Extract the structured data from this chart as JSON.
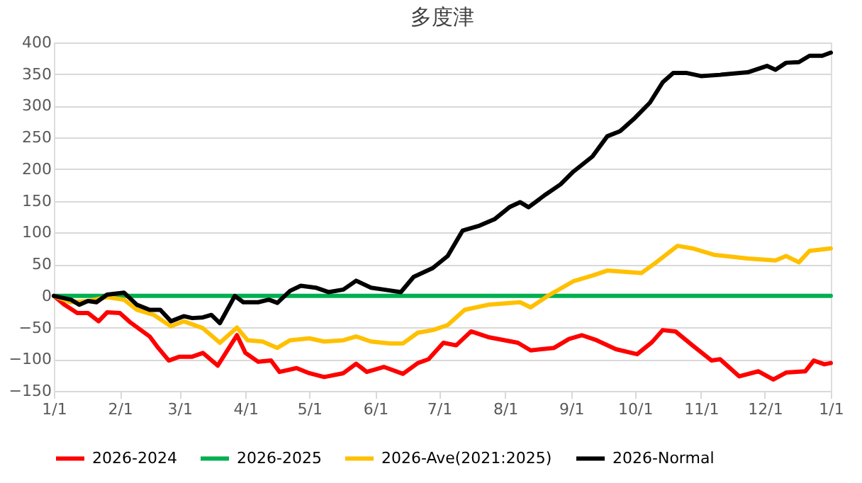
{
  "chart_data": {
    "type": "line",
    "title": "多度津",
    "xlim": [
      "2026-01-01",
      "2027-01-01"
    ],
    "xticks": [
      {
        "value": "2026-01-01",
        "label": "1/1"
      },
      {
        "value": "2026-02-01",
        "label": "2/1"
      },
      {
        "value": "2026-03-01",
        "label": "3/1"
      },
      {
        "value": "2026-04-01",
        "label": "4/1"
      },
      {
        "value": "2026-05-01",
        "label": "5/1"
      },
      {
        "value": "2026-06-01",
        "label": "6/1"
      },
      {
        "value": "2026-07-01",
        "label": "7/1"
      },
      {
        "value": "2026-08-01",
        "label": "8/1"
      },
      {
        "value": "2026-09-01",
        "label": "9/1"
      },
      {
        "value": "2026-10-01",
        "label": "10/1"
      },
      {
        "value": "2026-11-01",
        "label": "11/1"
      },
      {
        "value": "2026-12-01",
        "label": "12/1"
      },
      {
        "value": "2027-01-01",
        "label": "1/1"
      }
    ],
    "ylim": [
      -150,
      400
    ],
    "yticks": [
      -150,
      -100,
      -50,
      0,
      50,
      100,
      150,
      200,
      250,
      300,
      350,
      400
    ],
    "grid": "y",
    "legend": "bottom",
    "line_style": "solid",
    "marker": "none",
    "series": [
      {
        "name": "2026-2024",
        "color": "#ff0000",
        "x": [
          "2026-01-01",
          "2026-01-06",
          "2026-01-12",
          "2026-01-17",
          "2026-01-22",
          "2026-01-26",
          "2026-02-01",
          "2026-02-06",
          "2026-02-15",
          "2026-02-19",
          "2026-02-24",
          "2026-03-01",
          "2026-03-07",
          "2026-03-12",
          "2026-03-19",
          "2026-03-28",
          "2026-04-01",
          "2026-04-07",
          "2026-04-13",
          "2026-04-17",
          "2026-04-25",
          "2026-05-01",
          "2026-05-08",
          "2026-05-17",
          "2026-05-23",
          "2026-05-28",
          "2026-06-05",
          "2026-06-14",
          "2026-06-21",
          "2026-06-26",
          "2026-07-03",
          "2026-07-09",
          "2026-07-16",
          "2026-07-24",
          "2026-08-07",
          "2026-08-13",
          "2026-08-24",
          "2026-08-31",
          "2026-09-06",
          "2026-09-13",
          "2026-09-22",
          "2026-10-02",
          "2026-10-09",
          "2026-10-14",
          "2026-10-20",
          "2026-10-28",
          "2026-11-06",
          "2026-11-10",
          "2026-11-19",
          "2026-11-28",
          "2026-12-05",
          "2026-12-11",
          "2026-12-20",
          "2026-12-24",
          "2026-12-29",
          "2027-01-01"
        ],
        "values": [
          0,
          -14,
          -27,
          -27,
          -40,
          -26,
          -27,
          -42,
          -64,
          -82,
          -102,
          -96,
          -96,
          -90,
          -110,
          -62,
          -90,
          -104,
          -102,
          -120,
          -114,
          -122,
          -128,
          -122,
          -107,
          -120,
          -112,
          -123,
          -106,
          -100,
          -74,
          -78,
          -56,
          -65,
          -74,
          -86,
          -82,
          -68,
          -62,
          -70,
          -84,
          -92,
          -73,
          -54,
          -56,
          -78,
          -102,
          -100,
          -127,
          -119,
          -132,
          -121,
          -119,
          -102,
          -108,
          -106
        ]
      },
      {
        "name": "2026-2025",
        "color": "#00b050",
        "x": [
          "2026-01-01",
          "2027-01-01"
        ],
        "values": [
          0,
          0
        ]
      },
      {
        "name": "2026-Ave(2021:2025)",
        "color": "#ffc000",
        "x": [
          "2026-01-01",
          "2026-01-09",
          "2026-01-17",
          "2026-01-26",
          "2026-02-03",
          "2026-02-09",
          "2026-02-17",
          "2026-02-25",
          "2026-03-03",
          "2026-03-12",
          "2026-03-20",
          "2026-03-28",
          "2026-04-02",
          "2026-04-09",
          "2026-04-16",
          "2026-04-22",
          "2026-05-01",
          "2026-05-08",
          "2026-05-17",
          "2026-05-23",
          "2026-05-30",
          "2026-06-08",
          "2026-06-14",
          "2026-06-21",
          "2026-06-28",
          "2026-07-05",
          "2026-07-13",
          "2026-07-24",
          "2026-08-08",
          "2026-08-13",
          "2026-08-22",
          "2026-09-02",
          "2026-09-11",
          "2026-09-18",
          "2026-10-04",
          "2026-10-11",
          "2026-10-21",
          "2026-10-28",
          "2026-11-07",
          "2026-11-23",
          "2026-12-06",
          "2026-12-11",
          "2026-12-17",
          "2026-12-22",
          "2027-01-01"
        ],
        "values": [
          0,
          -10,
          -8,
          -2,
          -6,
          -22,
          -30,
          -48,
          -40,
          -51,
          -74,
          -50,
          -70,
          -72,
          -82,
          -70,
          -67,
          -72,
          -70,
          -64,
          -72,
          -75,
          -75,
          -58,
          -54,
          -46,
          -22,
          -14,
          -10,
          -18,
          2,
          23,
          32,
          40,
          36,
          53,
          79,
          75,
          65,
          59,
          56,
          63,
          53,
          71,
          75
        ]
      },
      {
        "name": "2026-Normal",
        "color": "#000000",
        "x": [
          "2026-01-01",
          "2026-01-09",
          "2026-01-13",
          "2026-01-17",
          "2026-01-21",
          "2026-01-26",
          "2026-02-03",
          "2026-02-09",
          "2026-02-15",
          "2026-02-20",
          "2026-02-25",
          "2026-03-03",
          "2026-03-07",
          "2026-03-12",
          "2026-03-16",
          "2026-03-20",
          "2026-03-27",
          "2026-03-31",
          "2026-04-07",
          "2026-04-12",
          "2026-04-16",
          "2026-04-22",
          "2026-04-27",
          "2026-05-04",
          "2026-05-10",
          "2026-05-17",
          "2026-05-23",
          "2026-05-30",
          "2026-06-05",
          "2026-06-13",
          "2026-06-19",
          "2026-06-28",
          "2026-07-05",
          "2026-07-12",
          "2026-07-20",
          "2026-07-27",
          "2026-08-03",
          "2026-08-08",
          "2026-08-12",
          "2026-08-20",
          "2026-08-27",
          "2026-09-02",
          "2026-09-11",
          "2026-09-18",
          "2026-09-24",
          "2026-10-01",
          "2026-10-08",
          "2026-10-14",
          "2026-10-19",
          "2026-10-25",
          "2026-11-01",
          "2026-11-10",
          "2026-11-23",
          "2026-12-02",
          "2026-12-06",
          "2026-12-11",
          "2026-12-17",
          "2026-12-22",
          "2026-12-28",
          "2027-01-01"
        ],
        "values": [
          0,
          -6,
          -14,
          -8,
          -10,
          2,
          5,
          -14,
          -22,
          -22,
          -40,
          -32,
          -35,
          -34,
          -30,
          -43,
          0,
          -10,
          -10,
          -6,
          -11,
          8,
          16,
          13,
          6,
          10,
          24,
          13,
          10,
          6,
          30,
          44,
          63,
          103,
          111,
          121,
          140,
          148,
          140,
          160,
          176,
          196,
          220,
          252,
          260,
          281,
          305,
          337,
          352,
          352,
          347,
          349,
          353,
          363,
          357,
          368,
          369,
          379,
          379,
          384
        ]
      }
    ]
  }
}
